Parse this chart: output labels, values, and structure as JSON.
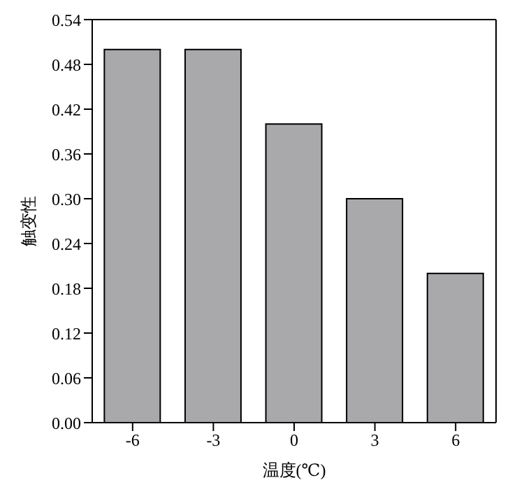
{
  "chart_data": {
    "type": "bar",
    "xlabel": "温度(℃)",
    "ylabel": "触变性",
    "categories": [
      "-6",
      "-3",
      "0",
      "3",
      "6"
    ],
    "values": [
      0.5,
      0.5,
      0.4,
      0.3,
      0.2
    ],
    "color": "#a9a9ac",
    "ylim": [
      0,
      0.54
    ],
    "yticks": [
      {
        "value": 0,
        "label": "0.00"
      },
      0.06,
      0.12,
      0.18,
      0.24,
      {
        "value": 0.3,
        "label": "0.30"
      },
      0.36,
      0.42,
      0.48,
      0.54
    ],
    "grid": false,
    "legend": false
  }
}
